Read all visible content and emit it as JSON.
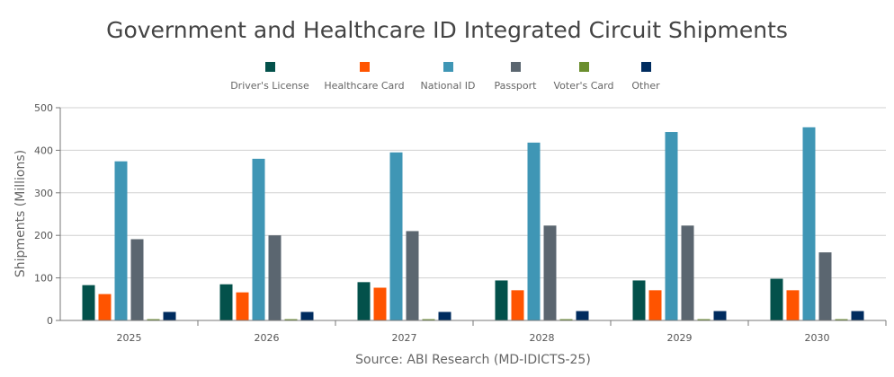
{
  "chart_data": {
    "type": "bar",
    "title": "Government and Healthcare ID Integrated Circuit Shipments",
    "ylabel": "Shipments (Millions)",
    "xlabel": "",
    "source": "Source: ABI Research (MD-IDICTS-25)",
    "ylim": [
      0,
      500
    ],
    "yticks": [
      0,
      100,
      200,
      300,
      400,
      500
    ],
    "grid": true,
    "legend_position": "top",
    "categories": [
      "2025",
      "2026",
      "2027",
      "2028",
      "2029",
      "2030"
    ],
    "series": [
      {
        "name": "Driver's License",
        "color": "#03514b",
        "values": [
          83,
          85,
          90,
          94,
          94,
          98
        ]
      },
      {
        "name": "Healthcare Card",
        "color": "#ff5400",
        "values": [
          62,
          66,
          77,
          71,
          71,
          71
        ]
      },
      {
        "name": "National ID",
        "color": "#3f96b5",
        "values": [
          374,
          380,
          395,
          418,
          443,
          454
        ]
      },
      {
        "name": "Passport",
        "color": "#5b6670",
        "values": [
          191,
          200,
          210,
          223,
          223,
          160
        ]
      },
      {
        "name": "Voter's Card",
        "color": "#6a8e2e",
        "values": [
          3,
          3,
          3,
          3,
          3,
          3
        ]
      },
      {
        "name": "Other",
        "color": "#002c5f",
        "values": [
          20,
          20,
          20,
          22,
          22,
          22
        ]
      }
    ]
  }
}
